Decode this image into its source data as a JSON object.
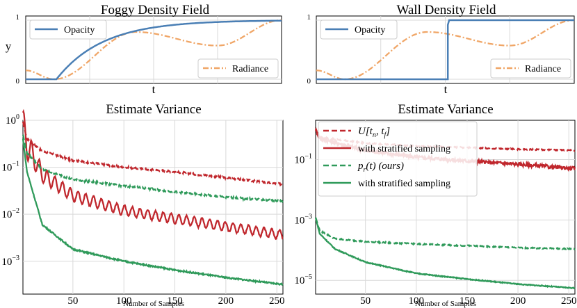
{
  "chart_data": [
    {
      "id": "foggy",
      "type": "line",
      "title": "Foggy Density Field",
      "xlabel": "t",
      "ylabel": "y",
      "xlim": [
        0,
        1
      ],
      "ylim": [
        0,
        1
      ],
      "yticks": [
        "0",
        "1"
      ],
      "legend": [
        {
          "label": "Opacity",
          "position": "top-left"
        },
        {
          "label": "Radiance",
          "position": "bottom-right"
        }
      ],
      "series": [
        {
          "name": "Opacity",
          "color": "#4a7fb5",
          "style": "solid",
          "shape": "smooth ramp from t=0.12 to 1"
        },
        {
          "name": "Radiance",
          "color": "#f0a667",
          "style": "dashdot",
          "shape": "sinusoid, min 0 at t≈0.11, max 0.8 at t≈0.43, min 0.57 at t≈0.75, 1 at t=1"
        }
      ]
    },
    {
      "id": "wall",
      "type": "line",
      "title": "Wall Density Field",
      "xlabel": "t",
      "ylabel": "",
      "xlim": [
        0,
        1
      ],
      "ylim": [
        0,
        1
      ],
      "yticks": [
        "0",
        "1"
      ],
      "legend": [
        {
          "label": "Opacity",
          "position": "top-left"
        },
        {
          "label": "Radiance",
          "position": "bottom-right"
        }
      ],
      "series": [
        {
          "name": "Opacity",
          "color": "#4a7fb5",
          "style": "solid",
          "shape": "step from 0 to 1 at t≈0.51"
        },
        {
          "name": "Radiance",
          "color": "#f0a667",
          "style": "dashdot",
          "shape": "same sinusoid as foggy"
        }
      ]
    },
    {
      "id": "var-foggy",
      "type": "line",
      "title": "Estimate Variance",
      "xlabel": "Number of Samples",
      "yscale": "log",
      "xlim": [
        1,
        256
      ],
      "ylim": [
        0.0002,
        1
      ],
      "xticks": [
        "50",
        "100",
        "150",
        "200",
        "250"
      ],
      "yticks": [
        {
          "base": "10",
          "exp": "0"
        },
        {
          "base": "10",
          "exp": "−1"
        },
        {
          "base": "10",
          "exp": "−2"
        },
        {
          "base": "10",
          "exp": "−3"
        }
      ],
      "series": [
        {
          "name": "U[tn, tf]",
          "color": "#c0272d",
          "style": "dashed",
          "points": [
            [
              1,
              0.9
            ],
            [
              5,
              0.4
            ],
            [
              20,
              0.22
            ],
            [
              50,
              0.14
            ],
            [
              100,
              0.1
            ],
            [
              150,
              0.08
            ],
            [
              200,
              0.06
            ],
            [
              256,
              0.043
            ]
          ]
        },
        {
          "name": "U[tn, tf] with stratified sampling",
          "color": "#c0272d",
          "style": "solid",
          "oscillation": true,
          "points": [
            [
              1,
              0.9
            ],
            [
              5,
              0.3
            ],
            [
              20,
              0.07
            ],
            [
              50,
              0.025
            ],
            [
              100,
              0.012
            ],
            [
              150,
              0.008
            ],
            [
              200,
              0.0055
            ],
            [
              256,
              0.0036
            ]
          ]
        },
        {
          "name": "pr(t) (ours)",
          "color": "#2f9a5a",
          "style": "dashed",
          "points": [
            [
              1,
              0.5
            ],
            [
              5,
              0.2
            ],
            [
              20,
              0.09
            ],
            [
              50,
              0.055
            ],
            [
              100,
              0.04
            ],
            [
              150,
              0.03
            ],
            [
              200,
              0.023
            ],
            [
              256,
              0.019
            ]
          ]
        },
        {
          "name": "pr(t) with stratified sampling",
          "color": "#2f9a5a",
          "style": "solid",
          "points": [
            [
              1,
              0.4
            ],
            [
              5,
              0.08
            ],
            [
              20,
              0.006
            ],
            [
              50,
              0.0018
            ],
            [
              100,
              0.001
            ],
            [
              150,
              0.00065
            ],
            [
              200,
              0.00045
            ],
            [
              256,
              0.00032
            ]
          ]
        }
      ]
    },
    {
      "id": "var-wall",
      "type": "line",
      "title": "Estimate Variance",
      "xlabel": "Number of Samples",
      "yscale": "log",
      "xlim": [
        1,
        256
      ],
      "ylim": [
        3.5e-06,
        2
      ],
      "xticks": [
        "50",
        "100",
        "150",
        "200",
        "250"
      ],
      "yticks": [
        {
          "base": "10",
          "exp": "−1"
        },
        {
          "base": "10",
          "exp": "−3"
        },
        {
          "base": "10",
          "exp": "−5"
        }
      ],
      "legend": [
        {
          "label": "U[t",
          "sub1": "n",
          "mid": ", t",
          "sub2": "f",
          "end": "]"
        },
        {
          "label": "with stratified sampling"
        },
        {
          "label": "p",
          "sub1": "r",
          "end": "(t) (ours)"
        },
        {
          "label": "with stratified sampling"
        }
      ],
      "series": [
        {
          "name": "U[tn, tf]",
          "color": "#c0272d",
          "style": "dashed",
          "points": [
            [
              1,
              1.0
            ],
            [
              5,
              0.55
            ],
            [
              50,
              0.35
            ],
            [
              100,
              0.28
            ],
            [
              150,
              0.25
            ],
            [
              200,
              0.22
            ],
            [
              256,
              0.2
            ]
          ]
        },
        {
          "name": "U[tn, tf] with stratified sampling",
          "color": "#c0272d",
          "style": "solid",
          "noisy": true,
          "points": [
            [
              1,
              1.0
            ],
            [
              5,
              0.5
            ],
            [
              50,
              0.2
            ],
            [
              100,
              0.12
            ],
            [
              150,
              0.09
            ],
            [
              200,
              0.07
            ],
            [
              256,
              0.05
            ]
          ]
        },
        {
          "name": "pr(t) (ours)",
          "color": "#2f9a5a",
          "style": "dashed",
          "points": [
            [
              1,
              0.0012
            ],
            [
              5,
              0.00045
            ],
            [
              20,
              0.00024
            ],
            [
              50,
              0.00019
            ],
            [
              100,
              0.00016
            ],
            [
              150,
              0.00014
            ],
            [
              200,
              0.00012
            ],
            [
              256,
              0.00011
            ]
          ]
        },
        {
          "name": "pr(t) with stratified sampling",
          "color": "#2f9a5a",
          "style": "solid",
          "points": [
            [
              1,
              0.0012
            ],
            [
              5,
              0.00035
            ],
            [
              20,
              0.00011
            ],
            [
              50,
              4e-05
            ],
            [
              100,
              1.7e-05
            ],
            [
              150,
              1.1e-05
            ],
            [
              200,
              7.5e-06
            ],
            [
              256,
              5.5e-06
            ]
          ]
        }
      ]
    }
  ]
}
